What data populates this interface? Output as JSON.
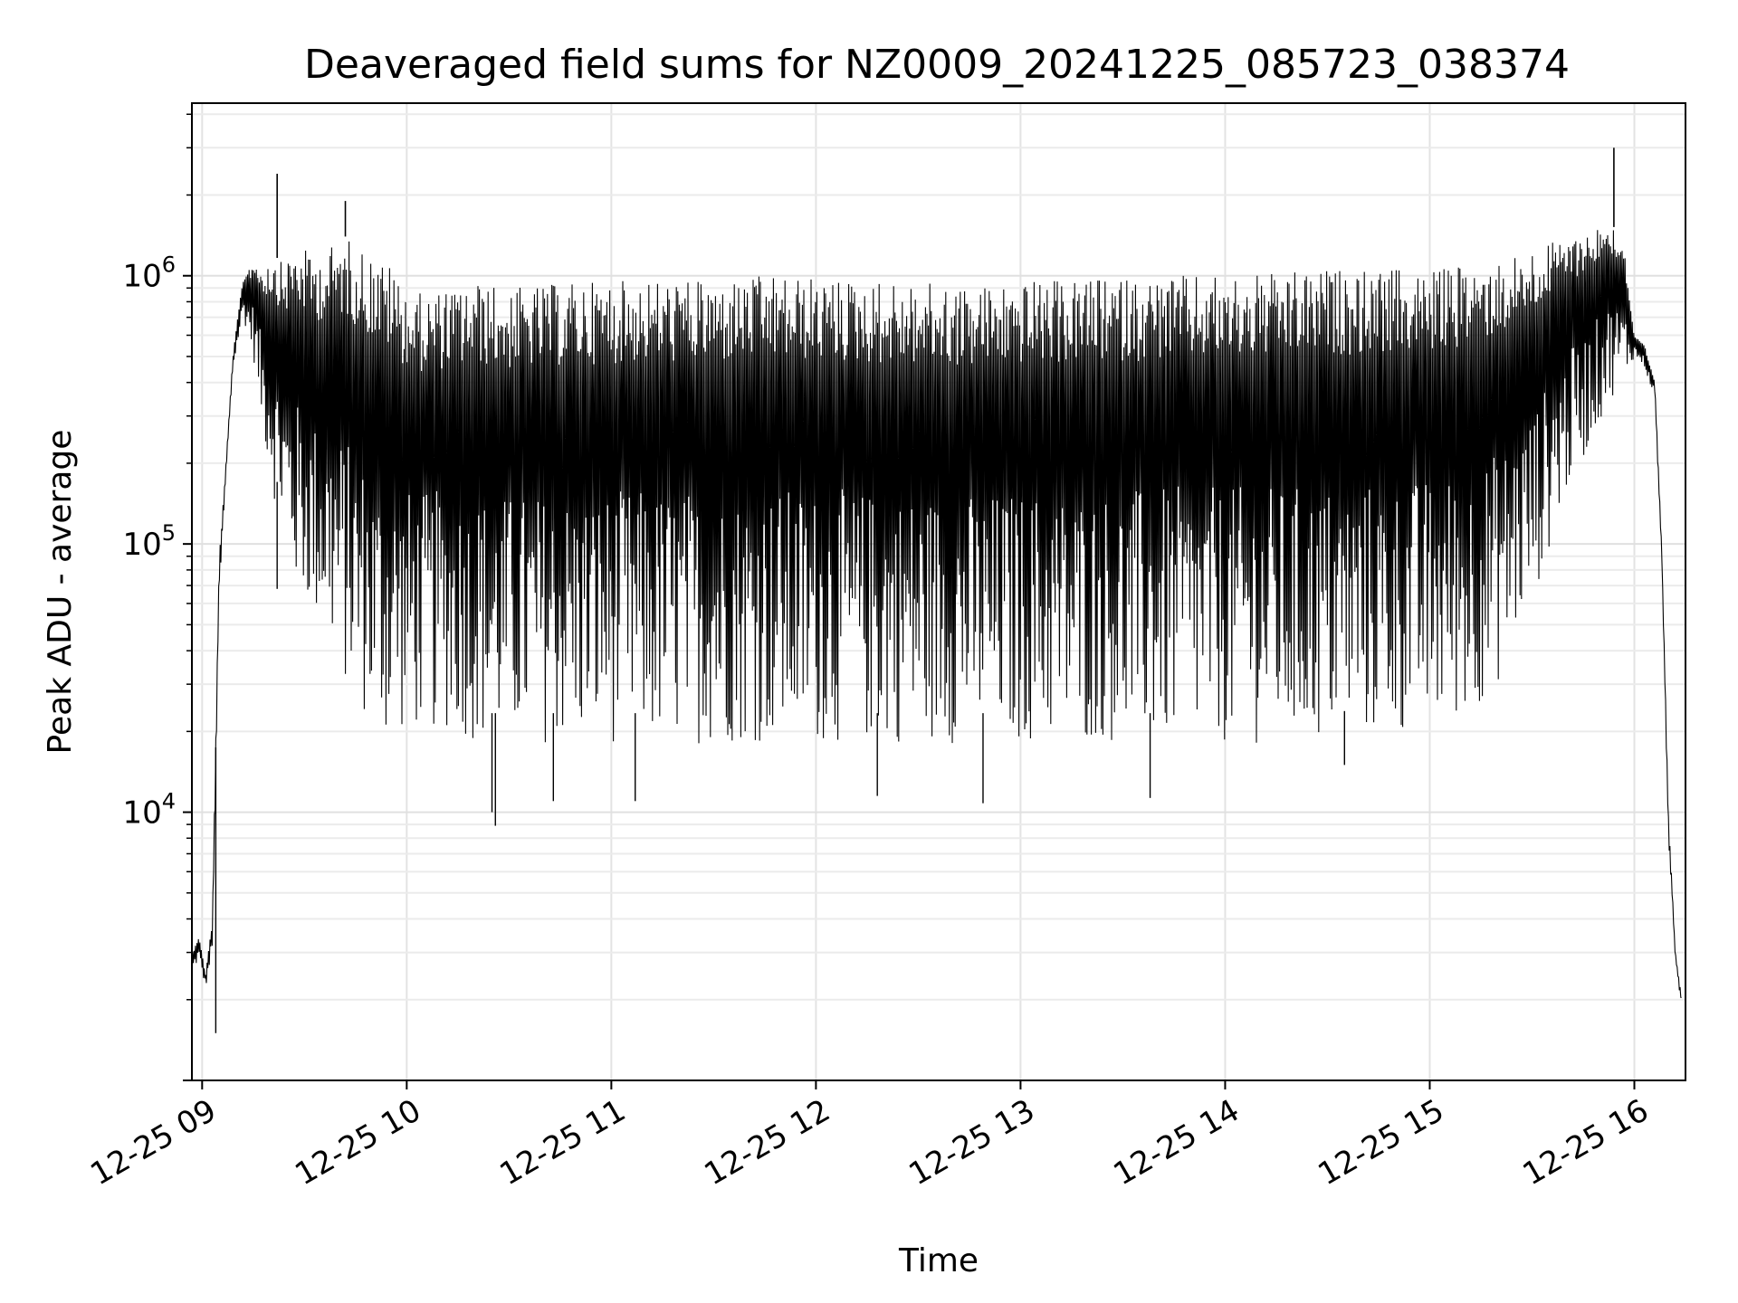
{
  "chart_data": {
    "type": "line",
    "title": "Deaveraged field sums for NZ0009_20241225_085723_038374",
    "xlabel": "Time",
    "ylabel": "Peak ADU - average",
    "x_scale": "time",
    "y_scale": "log",
    "xlim": [
      "2024-12-25 08:57",
      "2024-12-25 16:15"
    ],
    "ylim": [
      1000,
      4400000
    ],
    "x_ticks": [
      {
        "value": "2024-12-25 09:00",
        "label": "12-25 09"
      },
      {
        "value": "2024-12-25 10:00",
        "label": "12-25 10"
      },
      {
        "value": "2024-12-25 11:00",
        "label": "12-25 11"
      },
      {
        "value": "2024-12-25 12:00",
        "label": "12-25 12"
      },
      {
        "value": "2024-12-25 13:00",
        "label": "12-25 13"
      },
      {
        "value": "2024-12-25 14:00",
        "label": "12-25 14"
      },
      {
        "value": "2024-12-25 15:00",
        "label": "12-25 15"
      },
      {
        "value": "2024-12-25 16:00",
        "label": "12-25 16"
      }
    ],
    "y_ticks": [
      {
        "value": 10000,
        "base": "10",
        "exp": "4"
      },
      {
        "value": 100000,
        "base": "10",
        "exp": "5"
      },
      {
        "value": 1000000,
        "base": "10",
        "exp": "6"
      }
    ],
    "grid": true,
    "grid_minor_y": true,
    "line_color": "#000000",
    "series": [
      {
        "x": [
          "2024-12-25 08:57",
          "2024-12-25 08:59",
          "2024-12-25 09:01",
          "2024-12-25 09:03",
          "2024-12-25 09:05",
          "2024-12-25 09:07",
          "2024-12-25 09:09",
          "2024-12-25 09:12",
          "2024-12-25 09:15",
          "2024-12-25 09:18",
          "2024-12-25 09:21",
          "2024-12-25 09:24",
          "2024-12-25 09:27",
          "2024-12-25 09:30",
          "2024-12-25 09:34",
          "2024-12-25 09:38",
          "2024-12-25 09:42",
          "2024-12-25 09:46",
          "2024-12-25 09:50",
          "2024-12-25 09:55",
          "2024-12-25 10:00",
          "2024-12-25 10:05",
          "2024-12-25 10:10",
          "2024-12-25 10:15",
          "2024-12-25 10:20",
          "2024-12-25 10:30",
          "2024-12-25 10:40",
          "2024-12-25 10:50",
          "2024-12-25 11:00",
          "2024-12-25 11:15",
          "2024-12-25 11:30",
          "2024-12-25 11:45",
          "2024-12-25 12:00",
          "2024-12-25 12:15",
          "2024-12-25 12:30",
          "2024-12-25 12:45",
          "2024-12-25 13:00",
          "2024-12-25 13:15",
          "2024-12-25 13:30",
          "2024-12-25 13:45",
          "2024-12-25 14:00",
          "2024-12-25 14:15",
          "2024-12-25 14:30",
          "2024-12-25 14:45",
          "2024-12-25 15:00",
          "2024-12-25 15:10",
          "2024-12-25 15:20",
          "2024-12-25 15:30",
          "2024-12-25 15:40",
          "2024-12-25 15:48",
          "2024-12-25 15:53",
          "2024-12-25 15:57",
          "2024-12-25 16:00",
          "2024-12-25 16:03",
          "2024-12-25 16:06",
          "2024-12-25 16:08",
          "2024-12-25 16:10",
          "2024-12-25 16:12",
          "2024-12-25 16:14"
        ],
        "y": [
          3000,
          3500,
          2500,
          4000,
          90000,
          200000,
          500000,
          1000000,
          1150000,
          1100000,
          1200000,
          1100000,
          1300000,
          1250000,
          1200000,
          1300000,
          1400000,
          1300000,
          1200000,
          1100000,
          900000,
          850000,
          880000,
          900000,
          950000,
          900000,
          920000,
          950000,
          960000,
          970000,
          950000,
          1000000,
          980000,
          960000,
          940000,
          920000,
          950000,
          960000,
          980000,
          1000000,
          1000000,
          1020000,
          1050000,
          1050000,
          1050000,
          1100000,
          1150000,
          1250000,
          1400000,
          1500000,
          1600000,
          1300000,
          600000,
          550000,
          400000,
          100000,
          10000,
          3000,
          2000
        ],
        "y_low": [
          2500,
          2800,
          2200,
          3000,
          60000,
          180000,
          450000,
          700000,
          500000,
          250000,
          150000,
          100000,
          70000,
          60000,
          50000,
          40000,
          30000,
          25000,
          20000,
          18000,
          20000,
          20000,
          20000,
          20000,
          18000,
          18000,
          18000,
          18000,
          18000,
          18000,
          18000,
          18000,
          18000,
          18000,
          18000,
          18000,
          18000,
          18000,
          18000,
          18000,
          18000,
          18000,
          18000,
          19000,
          20000,
          22000,
          30000,
          60000,
          150000,
          250000,
          350000,
          400000,
          500000,
          450000,
          350000,
          90000,
          8000,
          2800,
          1800
        ],
        "dips": [
          {
            "x": "2024-12-25 09:22",
            "y": 68000
          },
          {
            "x": "2024-12-25 10:25",
            "y": 10000
          },
          {
            "x": "2024-12-25 10:26",
            "y": 8900
          },
          {
            "x": "2024-12-25 10:43",
            "y": 11000
          },
          {
            "x": "2024-12-25 11:07",
            "y": 11000
          },
          {
            "x": "2024-12-25 12:18",
            "y": 11500
          },
          {
            "x": "2024-12-25 12:49",
            "y": 10800
          },
          {
            "x": "2024-12-25 13:38",
            "y": 11300
          },
          {
            "x": "2024-12-25 14:35",
            "y": 15000
          },
          {
            "x": "2024-12-25 09:04",
            "y": 1500
          }
        ],
        "spikes": [
          {
            "x": "2024-12-25 09:22",
            "y": 2400000
          },
          {
            "x": "2024-12-25 09:42",
            "y": 1900000
          },
          {
            "x": "2024-12-25 15:54",
            "y": 3000000
          }
        ]
      }
    ]
  }
}
